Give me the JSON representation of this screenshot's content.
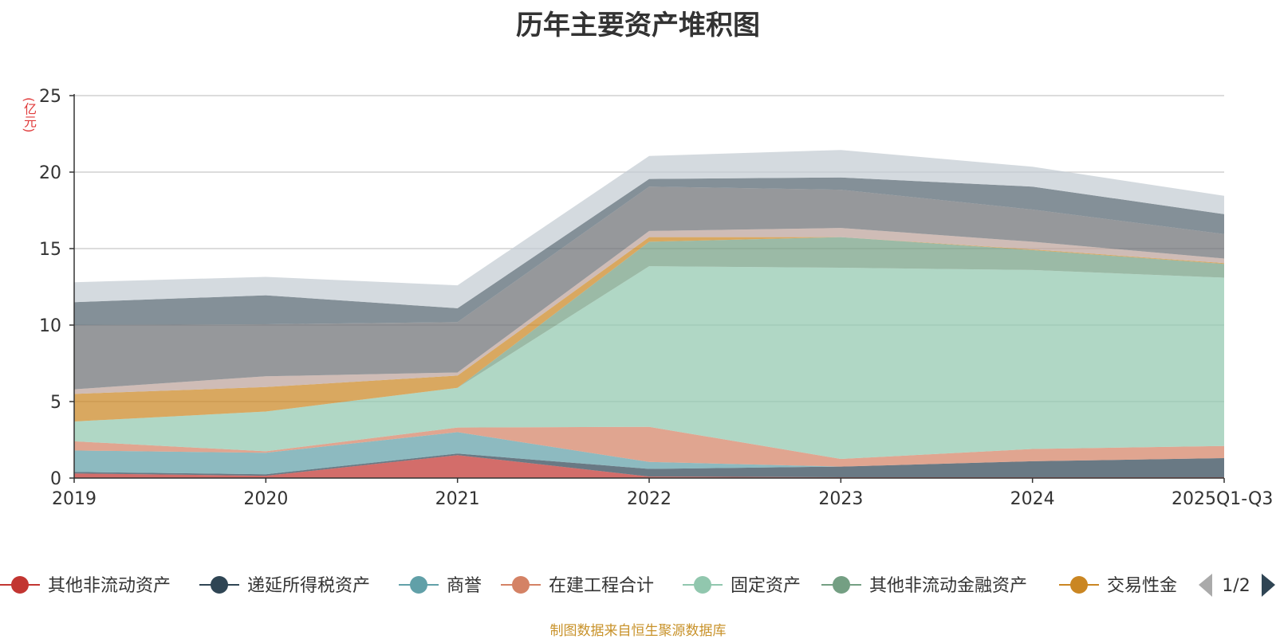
{
  "title": "历年主要资产堆积图",
  "unit": "(亿元)",
  "source": "制图数据来自恒生聚源数据库",
  "legend_page": "1/2",
  "chart_data": {
    "type": "area",
    "stacked": true,
    "x": [
      "2019",
      "2020",
      "2021",
      "2022",
      "2023",
      "2024",
      "2025Q1-Q3"
    ],
    "ylim": [
      0,
      25
    ],
    "yticks": [
      0,
      5,
      10,
      15,
      20,
      25
    ],
    "ylabel": "(亿元)",
    "grid": true,
    "legend_position": "bottom",
    "series": [
      {
        "name": "其他非流动资产",
        "color": "#c23531",
        "values": [
          0.3,
          0.15,
          1.5,
          0.1,
          0.05,
          0.05,
          0.05
        ],
        "legend": true
      },
      {
        "name": "递延所得税资产",
        "color": "#2f4554",
        "values": [
          0.1,
          0.1,
          0.1,
          0.5,
          0.7,
          1.05,
          1.25
        ],
        "legend": true
      },
      {
        "name": "商誉",
        "color": "#61a0a8",
        "values": [
          1.4,
          1.4,
          1.4,
          0.45,
          0.0,
          0.0,
          0.0
        ],
        "legend": true
      },
      {
        "name": "在建工程合计",
        "color": "#d48265",
        "values": [
          0.6,
          0.1,
          0.3,
          2.3,
          0.5,
          0.8,
          0.8
        ],
        "legend": true
      },
      {
        "name": "固定资产",
        "color": "#91c7ae",
        "values": [
          1.3,
          2.6,
          2.6,
          10.5,
          12.5,
          11.7,
          11.0
        ],
        "legend": true
      },
      {
        "name": "其他非流动金融资产",
        "color": "#749f83",
        "values": [
          0.0,
          0.0,
          0.0,
          1.6,
          2.0,
          1.3,
          0.9
        ],
        "legend": true
      },
      {
        "name": "交易性金",
        "color": "#ca8622",
        "values": [
          1.8,
          1.6,
          0.8,
          0.3,
          0.0,
          0.05,
          0.05
        ],
        "legend": true
      },
      {
        "name": "",
        "color": "#bda29a",
        "values": [
          0.3,
          0.7,
          0.2,
          0.4,
          0.6,
          0.5,
          0.3
        ],
        "legend": false
      },
      {
        "name": "",
        "color": "#6e7074",
        "values": [
          4.2,
          3.4,
          3.3,
          2.9,
          2.5,
          2.1,
          1.6
        ],
        "legend": false
      },
      {
        "name": "",
        "color": "#546570",
        "values": [
          1.5,
          1.9,
          0.9,
          0.5,
          0.8,
          1.5,
          1.3
        ],
        "legend": false
      },
      {
        "name": "",
        "color": "#c4ccd3",
        "values": [
          1.3,
          1.2,
          1.5,
          1.5,
          1.8,
          1.3,
          1.2
        ],
        "legend": false
      }
    ]
  }
}
